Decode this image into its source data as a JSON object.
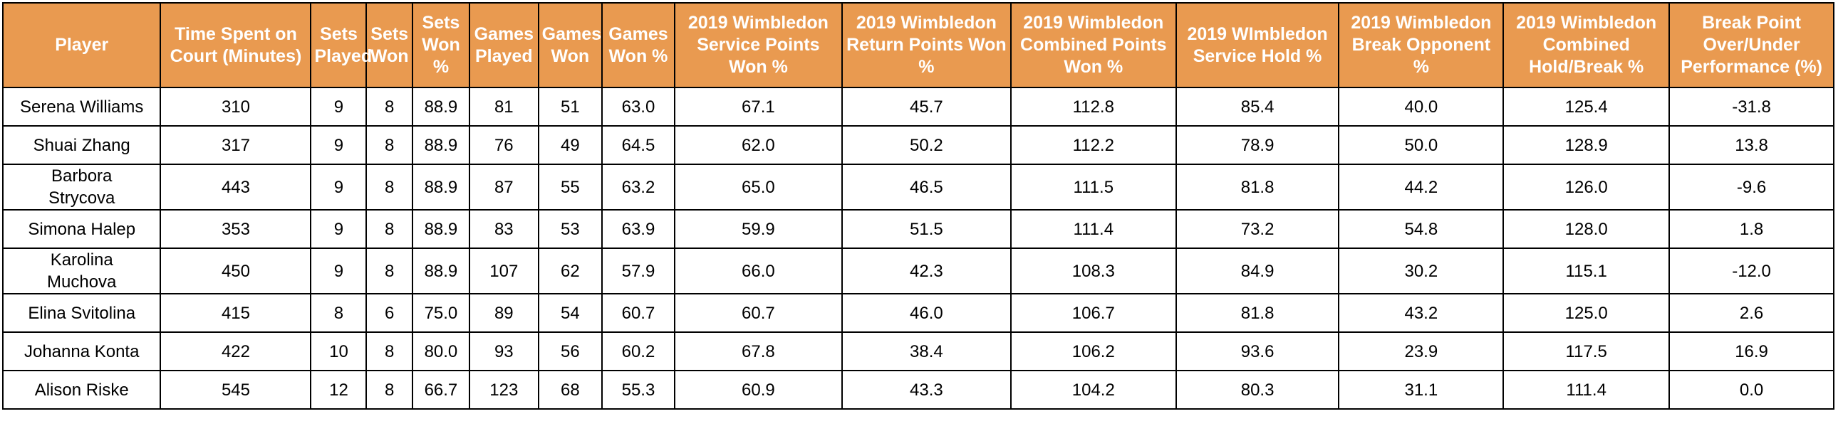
{
  "colors": {
    "header_bg": "#e99a50",
    "header_text": "#ffffff",
    "border": "#000000"
  },
  "columns": [
    "Player",
    "Time Spent on Court (Minutes)",
    "Sets Played",
    "Sets Won",
    "Sets Won %",
    "Games Played",
    "Games Won",
    "Games Won %",
    "2019 Wimbledon Service Points Won %",
    "2019 Wimbledon Return Points Won %",
    "2019 Wimbledon Combined Points Won %",
    "2019 WImbledon Service Hold %",
    "2019 Wimbledon Break Opponent %",
    "2019 Wimbledon Combined Hold/Break %",
    "Break Point Over/Under Performance (%)"
  ],
  "rows": [
    [
      "Serena Williams",
      "310",
      "9",
      "8",
      "88.9",
      "81",
      "51",
      "63.0",
      "67.1",
      "45.7",
      "112.8",
      "85.4",
      "40.0",
      "125.4",
      "-31.8"
    ],
    [
      "Shuai Zhang",
      "317",
      "9",
      "8",
      "88.9",
      "76",
      "49",
      "64.5",
      "62.0",
      "50.2",
      "112.2",
      "78.9",
      "50.0",
      "128.9",
      "13.8"
    ],
    [
      "Barbora Strycova",
      "443",
      "9",
      "8",
      "88.9",
      "87",
      "55",
      "63.2",
      "65.0",
      "46.5",
      "111.5",
      "81.8",
      "44.2",
      "126.0",
      "-9.6"
    ],
    [
      "Simona Halep",
      "353",
      "9",
      "8",
      "88.9",
      "83",
      "53",
      "63.9",
      "59.9",
      "51.5",
      "111.4",
      "73.2",
      "54.8",
      "128.0",
      "1.8"
    ],
    [
      "Karolina Muchova",
      "450",
      "9",
      "8",
      "88.9",
      "107",
      "62",
      "57.9",
      "66.0",
      "42.3",
      "108.3",
      "84.9",
      "30.2",
      "115.1",
      "-12.0"
    ],
    [
      "Elina Svitolina",
      "415",
      "8",
      "6",
      "75.0",
      "89",
      "54",
      "60.7",
      "60.7",
      "46.0",
      "106.7",
      "81.8",
      "43.2",
      "125.0",
      "2.6"
    ],
    [
      "Johanna Konta",
      "422",
      "10",
      "8",
      "80.0",
      "93",
      "56",
      "60.2",
      "67.8",
      "38.4",
      "106.2",
      "93.6",
      "23.9",
      "117.5",
      "16.9"
    ],
    [
      "Alison Riske",
      "545",
      "12",
      "8",
      "66.7",
      "123",
      "68",
      "55.3",
      "60.9",
      "43.3",
      "104.2",
      "80.3",
      "31.1",
      "111.4",
      "0.0"
    ]
  ]
}
